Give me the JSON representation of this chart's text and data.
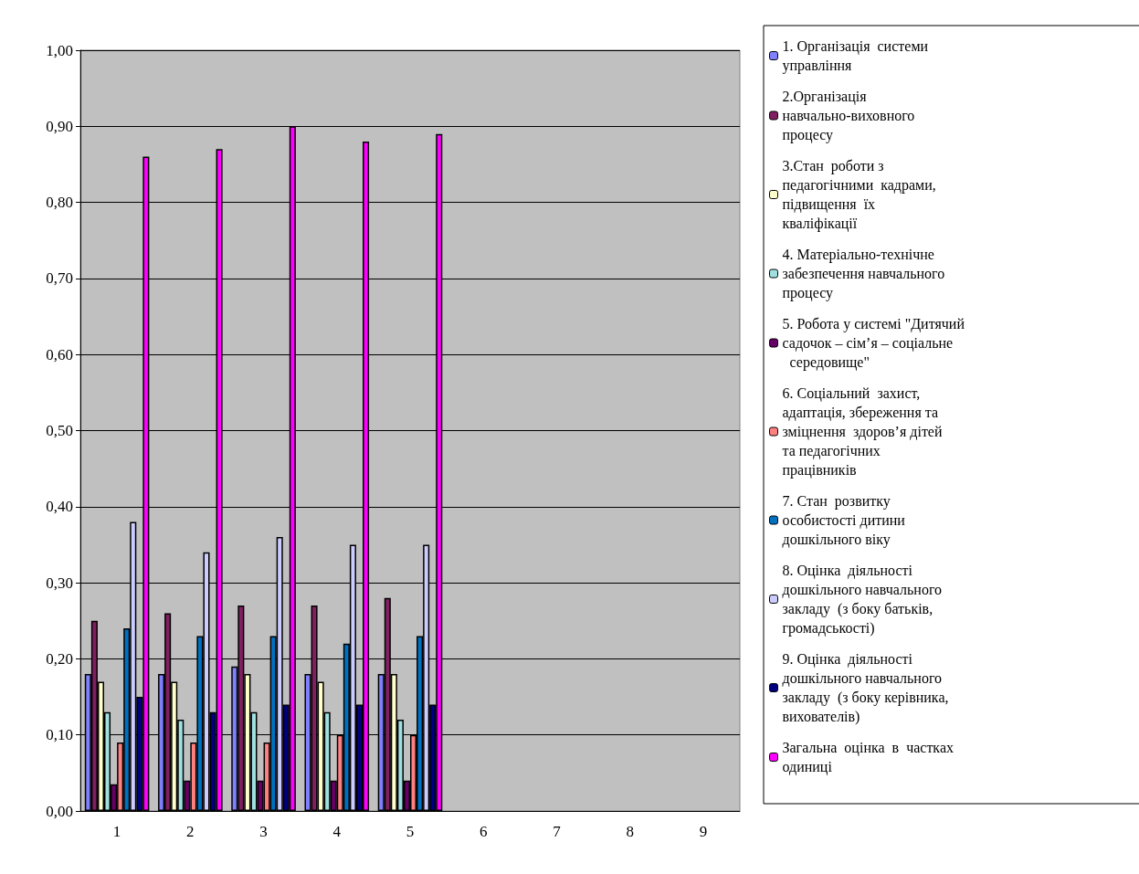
{
  "chart_data": {
    "type": "bar",
    "categories": [
      "1",
      "2",
      "3",
      "4",
      "5",
      "6",
      "7",
      "8",
      "9"
    ],
    "series": [
      {
        "name": "1. Організація  системи управління",
        "color": "#8080ff",
        "values": [
          0.18,
          0.18,
          0.19,
          0.18,
          0.18,
          null,
          null,
          null,
          null
        ]
      },
      {
        "name": "2.Організація  навчально-виховного процесу",
        "color": "#802060",
        "values": [
          0.25,
          0.26,
          0.27,
          0.27,
          0.28,
          null,
          null,
          null,
          null
        ]
      },
      {
        "name": "3.Стан  роботи з педагогічними  кадрами, підвищення  їх кваліфікації",
        "color": "#ffffcc",
        "values": [
          0.17,
          0.17,
          0.18,
          0.17,
          0.18,
          null,
          null,
          null,
          null
        ]
      },
      {
        "name": "4. Матеріально-технічне  забезпечення навчального  процесу",
        "color": "#a0e0e0",
        "values": [
          0.13,
          0.12,
          0.13,
          0.13,
          0.12,
          null,
          null,
          null,
          null
        ]
      },
      {
        "name": "5. Робота у системі \"Дитячий  садочок – сім’я – соціальне  середовище\"",
        "color": "#660066",
        "values": [
          0.035,
          0.04,
          0.04,
          0.04,
          0.04,
          null,
          null,
          null,
          null
        ]
      },
      {
        "name": "6. Соціальний  захист,  адаптація, збереження та зміцнення  здоров’я дітей та педагогічних  працівників",
        "color": "#ff8080",
        "values": [
          0.09,
          0.09,
          0.09,
          0.1,
          0.1,
          null,
          null,
          null,
          null
        ]
      },
      {
        "name": "7. Стан  розвитку  особистості дитини дошкільного віку",
        "color": "#0070c0",
        "values": [
          0.24,
          0.23,
          0.23,
          0.22,
          0.23,
          null,
          null,
          null,
          null
        ]
      },
      {
        "name": "8. Оцінка  діяльності дошкільного навчального  закладу  (з боку батьків, громадськості)",
        "color": "#ccccff",
        "values": [
          0.38,
          0.34,
          0.36,
          0.35,
          0.35,
          null,
          null,
          null,
          null
        ]
      },
      {
        "name": "9. Оцінка  діяльності дошкільного навчального  закладу  (з боку керівника, вихователів)",
        "color": "#000080",
        "values": [
          0.15,
          0.13,
          0.14,
          0.14,
          0.14,
          null,
          null,
          null,
          null
        ]
      },
      {
        "name": "Загальна  оцінка  в  частках  одиниці",
        "color": "#ff00ff",
        "values": [
          0.86,
          0.87,
          0.9,
          0.88,
          0.89,
          null,
          null,
          null,
          null
        ]
      }
    ],
    "ylim": [
      0,
      1
    ],
    "yticks": [
      {
        "value": 0,
        "label": "0,00"
      },
      {
        "value": 0.1,
        "label": "0,10"
      },
      {
        "value": 0.2,
        "label": "0,20"
      },
      {
        "value": 0.3,
        "label": "0,30"
      },
      {
        "value": 0.4,
        "label": "0,40"
      },
      {
        "value": 0.5,
        "label": "0,50"
      },
      {
        "value": 0.6,
        "label": "0,60"
      },
      {
        "value": 0.7,
        "label": "0,70"
      },
      {
        "value": 0.8,
        "label": "0,80"
      },
      {
        "value": 0.9,
        "label": "0,90"
      },
      {
        "value": 1,
        "label": "1,00"
      }
    ],
    "grid": "y",
    "legend": "right"
  }
}
